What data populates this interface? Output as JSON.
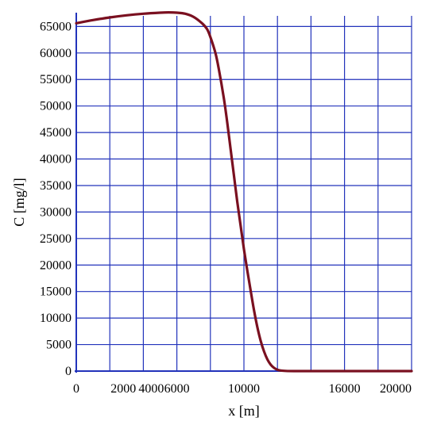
{
  "chart_data": {
    "type": "line",
    "title": "",
    "xlabel": "x [m]",
    "ylabel": "C [mg/l]",
    "xlim": [
      0,
      20000
    ],
    "ylim": [
      0,
      67000
    ],
    "x_ticks": [
      0,
      2000,
      4000,
      6000,
      10000,
      16000,
      20000
    ],
    "x_tick_labels": [
      "0",
      "2000",
      "4000",
      "6000",
      "10000",
      "16000",
      "20000"
    ],
    "x_gridlines": [
      0,
      2000,
      4000,
      6000,
      8000,
      10000,
      12000,
      14000,
      16000,
      18000,
      20000
    ],
    "y_ticks": [
      0,
      5000,
      10000,
      15000,
      20000,
      25000,
      30000,
      35000,
      40000,
      45000,
      50000,
      55000,
      60000,
      65000
    ],
    "grid": true,
    "colors": {
      "grid": "#2233bb",
      "axis": "#2233bb",
      "line": "#7a1020"
    },
    "series": [
      {
        "x": [
          0,
          1000,
          2000,
          3000,
          4000,
          5000,
          5500,
          6000,
          6500,
          7000,
          7500,
          7800,
          8000,
          8300,
          8500,
          8800,
          9000,
          9200,
          9400,
          9600,
          9800,
          10000,
          10200,
          10400,
          10600,
          10800,
          11000,
          11200,
          11400,
          11600,
          11800,
          12000,
          12200,
          12500,
          13000,
          14000,
          16000,
          18000,
          20000
        ],
        "y": [
          65600,
          66200,
          66700,
          67100,
          67400,
          67600,
          67650,
          67600,
          67400,
          66800,
          65600,
          64500,
          63000,
          60000,
          57000,
          51500,
          47000,
          42000,
          37000,
          32000,
          27500,
          23000,
          19000,
          15200,
          11500,
          8300,
          5700,
          3700,
          2200,
          1200,
          600,
          250,
          100,
          30,
          0,
          0,
          0,
          0,
          0
        ]
      }
    ]
  }
}
